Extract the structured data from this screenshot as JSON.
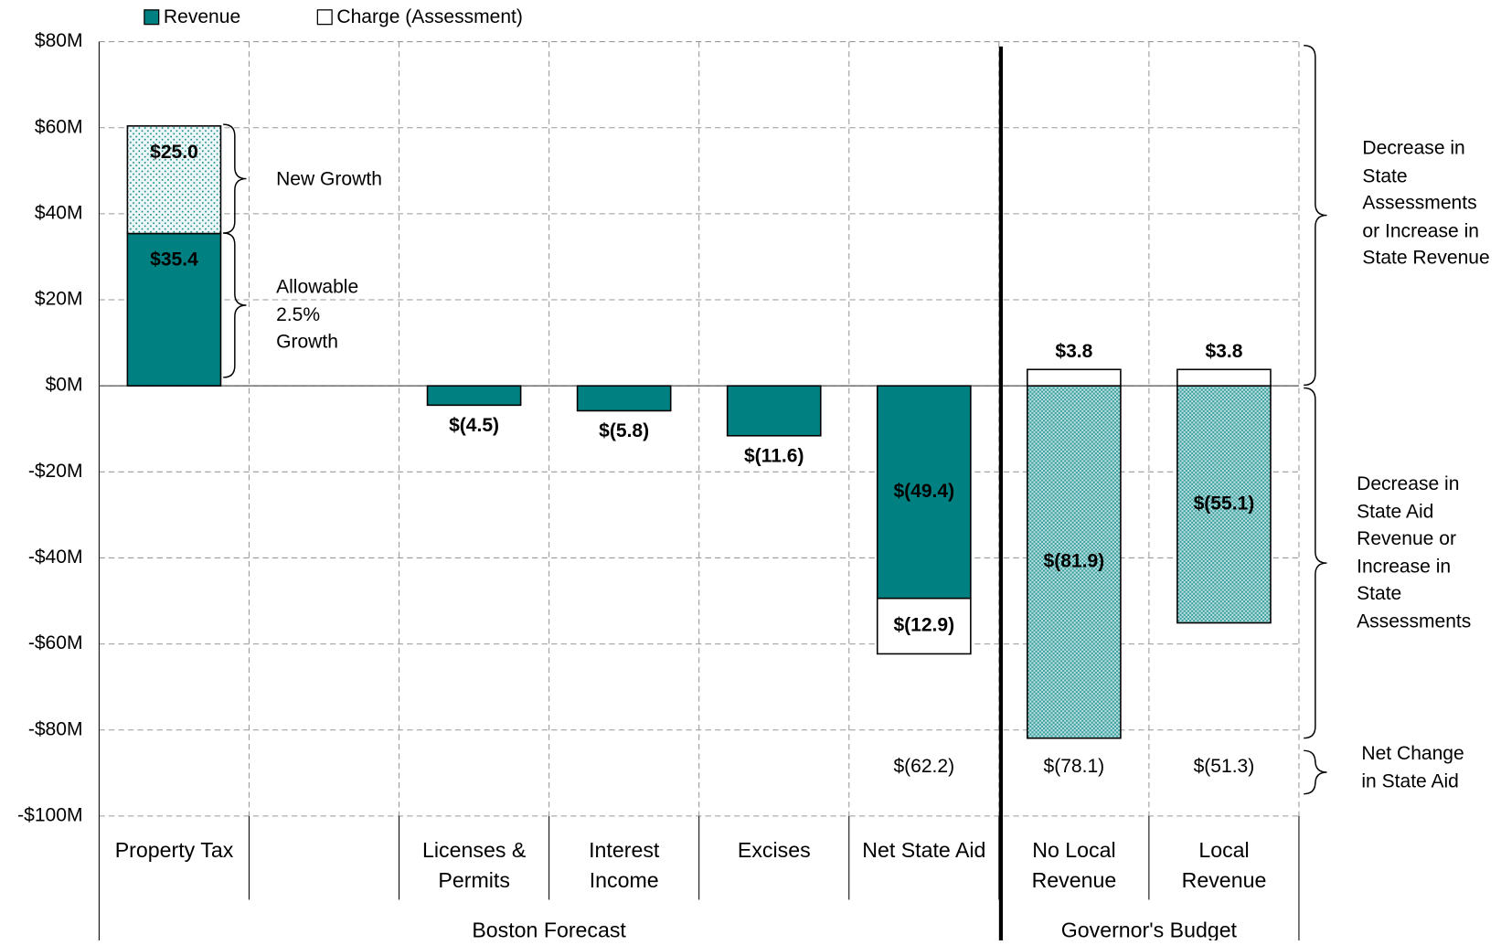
{
  "chart_data": {
    "type": "bar",
    "stacked": true,
    "categories": [
      "Property Tax",
      null,
      "Licenses & Permits",
      "Interest Income",
      "Excises",
      "Net State Aid",
      "No Local Revenue",
      "Local Revenue"
    ],
    "groups": [
      {
        "name": "Boston Forecast",
        "span": 6
      },
      {
        "name": "Governor's Budget",
        "span": 2
      }
    ],
    "series": [
      {
        "name": "Revenue",
        "color": "#008080",
        "values": [
          35.4,
          null,
          -4.5,
          -5.8,
          -11.6,
          -49.4,
          -81.9,
          -55.1
        ],
        "value_labels": [
          "$35.4",
          null,
          "$(4.5)",
          "$(5.8)",
          "$(11.6)",
          "$(49.4)",
          "$(81.9)",
          "$(55.1)"
        ],
        "point_patterns": [
          null,
          null,
          null,
          null,
          null,
          null,
          "hatch",
          "hatch"
        ]
      },
      {
        "name": "Charge (Assessment)",
        "color": "#ffffff",
        "values": [
          null,
          null,
          null,
          null,
          null,
          -12.9,
          3.8,
          3.8
        ],
        "value_labels": [
          null,
          null,
          null,
          null,
          null,
          "$(12.9)",
          "$3.8",
          "$3.8"
        ]
      },
      {
        "color": "#008080",
        "pattern": "dots",
        "values": [
          25.0,
          null,
          null,
          null,
          null,
          null,
          null,
          null
        ],
        "value_labels": [
          "$25.0",
          null,
          null,
          null,
          null,
          null,
          null,
          null
        ]
      }
    ],
    "net_change": {
      "values": [
        null,
        null,
        null,
        null,
        null,
        -62.2,
        -78.1,
        -51.3
      ],
      "value_labels": [
        null,
        null,
        null,
        null,
        null,
        "$(62.2)",
        "$(78.1)",
        "$(51.3)"
      ]
    },
    "ylim": [
      -100,
      80
    ],
    "yticks": [
      {
        "value": -100,
        "label": "-$100M"
      },
      {
        "value": -80,
        "label": "-$80M"
      },
      {
        "value": -60,
        "label": "-$60M"
      },
      {
        "value": -40,
        "label": "-$40M"
      },
      {
        "value": -20,
        "label": "-$20M"
      },
      {
        "value": 0,
        "label": "$0M"
      },
      {
        "value": 20,
        "label": "$20M"
      },
      {
        "value": 40,
        "label": "$40M"
      },
      {
        "value": 60,
        "label": "$60M"
      },
      {
        "value": 80,
        "label": "$80M"
      }
    ],
    "grid": true,
    "legend": "top-left",
    "annotations": [
      "New Growth",
      "Allowable 2.5% Growth",
      "Decrease in State Assessments or Increase in State Revenue",
      "Decrease in State Aid Revenue or Increase in State Assessments",
      "Net Change in State Aid"
    ]
  }
}
